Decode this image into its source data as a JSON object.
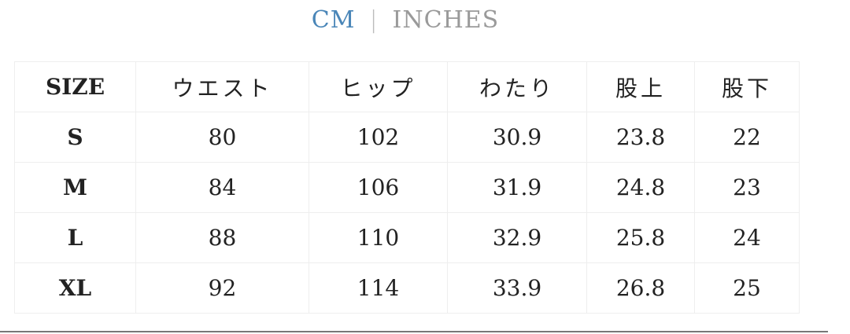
{
  "units": {
    "cm": "CM",
    "separator": "|",
    "inches": "INCHES",
    "active": "CM",
    "active_color": "#4a86b8"
  },
  "table": {
    "headers": [
      "SIZE",
      "ウエスト",
      "ヒップ",
      "わたり",
      "股上",
      "股下"
    ],
    "rows": [
      [
        "S",
        "80",
        "102",
        "30.9",
        "23.8",
        "22"
      ],
      [
        "M",
        "84",
        "106",
        "31.9",
        "24.8",
        "23"
      ],
      [
        "L",
        "88",
        "110",
        "32.9",
        "25.8",
        "24"
      ],
      [
        "XL",
        "92",
        "114",
        "33.9",
        "26.8",
        "25"
      ]
    ]
  }
}
